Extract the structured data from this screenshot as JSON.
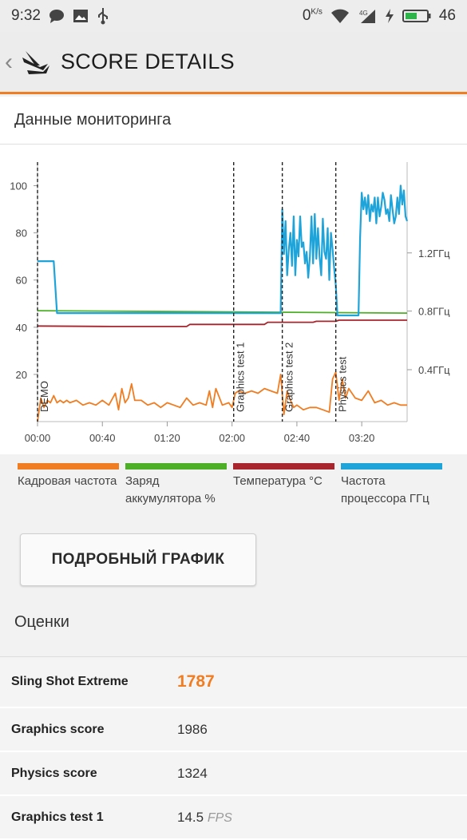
{
  "status_bar": {
    "time": "9:32",
    "net_speed": "0",
    "net_unit": "K/s",
    "battery": "46",
    "icons": [
      "chat-icon",
      "image-icon",
      "usb-icon",
      "wifi-icon",
      "signal-4g-icon",
      "charging-icon",
      "battery-icon"
    ]
  },
  "app_bar": {
    "title": "SCORE DETAILS",
    "icons": [
      "back-chevron-icon",
      "3dmark-logo-icon"
    ]
  },
  "monitoring": {
    "title": "Данные мониторинга"
  },
  "chart_data": {
    "type": "line",
    "y_left_ticks": [
      "100",
      "80",
      "60",
      "40",
      "20"
    ],
    "y_left_range": [
      0,
      110
    ],
    "y_right_ticks": [
      "1.2ГГц",
      "0.8ГГц",
      "0.4ГГц"
    ],
    "x_ticks": [
      "00:00",
      "00:40",
      "01:20",
      "02:00",
      "02:40",
      "03:20"
    ],
    "x_range_seconds": [
      0,
      228
    ],
    "markers": [
      {
        "label": "DEMO",
        "x": 0
      },
      {
        "label": "Graphics test 1",
        "x": 121
      },
      {
        "label": "Graphics test 2",
        "x": 151
      },
      {
        "label": "Physics test",
        "x": 184
      }
    ],
    "series": [
      {
        "name": "Кадровая частота",
        "color": "#f07d22",
        "x": [
          0,
          2,
          4,
          6,
          8,
          10,
          12,
          14,
          16,
          18,
          20,
          24,
          28,
          32,
          36,
          40,
          44,
          48,
          50,
          52,
          54,
          56,
          58,
          60,
          64,
          68,
          72,
          76,
          80,
          84,
          88,
          92,
          96,
          100,
          104,
          106,
          108,
          110,
          114,
          118,
          120,
          122,
          124,
          128,
          132,
          136,
          140,
          144,
          148,
          150,
          152,
          154,
          156,
          158,
          160,
          164,
          168,
          172,
          176,
          180,
          182,
          184,
          186,
          188,
          190,
          192,
          196,
          200,
          204,
          208,
          212,
          216,
          220,
          224,
          228
        ],
        "values": [
          0,
          10,
          6,
          9,
          8,
          11,
          8,
          9,
          8,
          9,
          8,
          9,
          7,
          8,
          7,
          9,
          7,
          12,
          5,
          14,
          8,
          10,
          16,
          9,
          9,
          7,
          8,
          6,
          8,
          7,
          6,
          10,
          7,
          8,
          7,
          13,
          6,
          14,
          7,
          8,
          6,
          12,
          13,
          12,
          13,
          12,
          14,
          13,
          12,
          20,
          3,
          13,
          9,
          6,
          7,
          5,
          6,
          6,
          5,
          4,
          18,
          21,
          9,
          18,
          10,
          14,
          10,
          9,
          13,
          8,
          9,
          7,
          8,
          7,
          7
        ]
      },
      {
        "name": "Заряд аккумулятора %",
        "color": "#4caf26",
        "x": [
          0,
          228
        ],
        "values": [
          47,
          46
        ]
      },
      {
        "name": "Температура °C",
        "color": "#a8252d",
        "x": [
          0,
          46,
          92,
          94,
          140,
          142,
          170,
          172,
          184,
          186,
          228
        ],
        "values": [
          40.5,
          40.3,
          40.3,
          41.2,
          41.2,
          42.1,
          42.1,
          42.5,
          42.5,
          43,
          43
        ]
      },
      {
        "name": "Частота процессора ГГц",
        "color": "#1fa4da",
        "x": [
          0,
          10,
          12,
          60,
          100,
          150,
          151,
          152,
          153,
          154,
          155,
          156,
          157,
          158,
          159,
          160,
          161,
          162,
          163,
          164,
          165,
          166,
          167,
          168,
          169,
          170,
          171,
          172,
          173,
          174,
          175,
          176,
          177,
          178,
          179,
          180,
          181,
          182,
          183,
          184,
          185,
          186,
          187,
          188,
          198,
          199,
          200,
          201,
          202,
          203,
          204,
          205,
          206,
          207,
          208,
          209,
          210,
          211,
          212,
          213,
          214,
          215,
          216,
          217,
          218,
          219,
          220,
          221,
          222,
          223,
          224,
          225,
          226,
          227,
          228
        ],
        "values": [
          68,
          68,
          46,
          46,
          46,
          46,
          90,
          71,
          85,
          62,
          73,
          80,
          66,
          87,
          62,
          77,
          70,
          87,
          74,
          76,
          67,
          72,
          61,
          70,
          87,
          67,
          88,
          69,
          82,
          70,
          62,
          86,
          72,
          69,
          82,
          60,
          80,
          73,
          65,
          58,
          45,
          45,
          45,
          45,
          45,
          78,
          97,
          90,
          95,
          88,
          96,
          85,
          92,
          89,
          95,
          84,
          95,
          87,
          91,
          97,
          94,
          88,
          90,
          85,
          96,
          90,
          84,
          87,
          95,
          88,
          100,
          92,
          98,
          87,
          85
        ]
      }
    ]
  },
  "legend": [
    {
      "label": "Кадровая частота",
      "color": "#f07d22"
    },
    {
      "label": "Заряд аккумулятора %",
      "color": "#4caf26"
    },
    {
      "label": "Температура °C",
      "color": "#a8252d"
    },
    {
      "label": "Частота процессора ГГц",
      "color": "#1fa4da"
    }
  ],
  "detail_button": {
    "label": "ПОДРОБНЫЙ ГРАФИК"
  },
  "scores": {
    "title": "Оценки",
    "rows": [
      {
        "name": "Sling Shot Extreme",
        "value": "1787",
        "unit": ""
      },
      {
        "name": "Graphics score",
        "value": "1986",
        "unit": ""
      },
      {
        "name": "Physics score",
        "value": "1324",
        "unit": ""
      },
      {
        "name": "Graphics test 1",
        "value": "14.5",
        "unit": "FPS"
      }
    ]
  }
}
